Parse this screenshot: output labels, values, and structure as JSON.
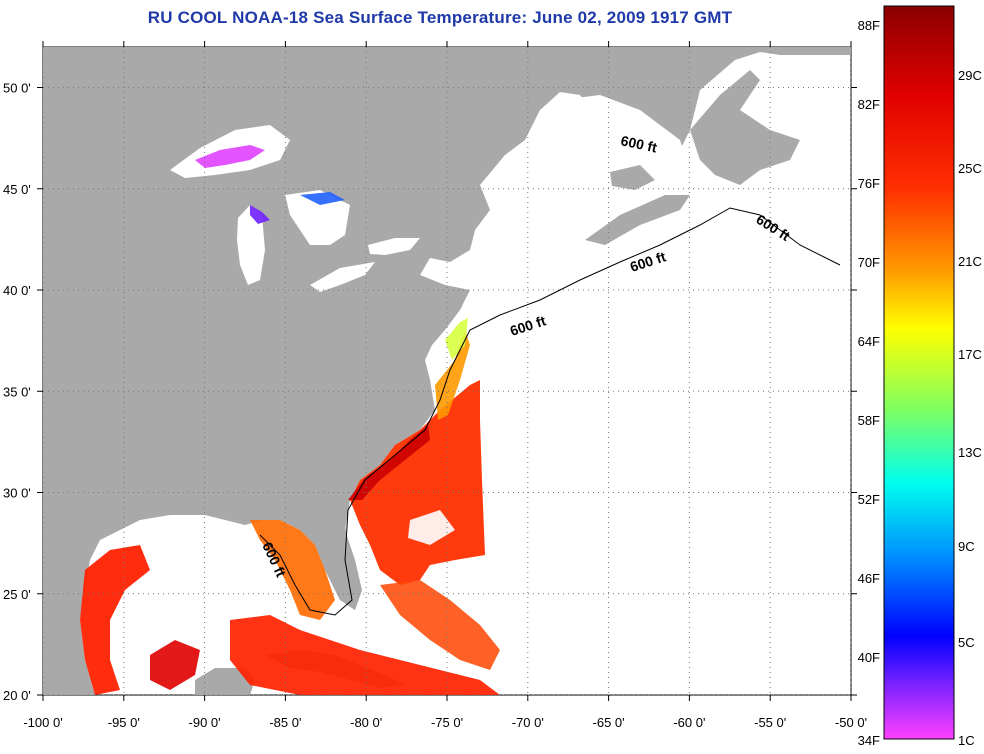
{
  "title": "RU COOL  NOAA-18  Sea Surface Temperature:  June 02, 2009 1917 GMT",
  "map": {
    "lon_range": [
      -100,
      -50
    ],
    "lat_range": [
      20,
      52
    ],
    "lon_ticks": [
      "-100 0'",
      "-95 0'",
      "-90 0'",
      "-85 0'",
      "-80 0'",
      "-75 0'",
      "-70 0'",
      "-65 0'",
      "-60 0'",
      "-55 0'",
      "-50 0'"
    ],
    "lat_ticks": [
      "20 0'",
      "25 0'",
      "30 0'",
      "35 0'",
      "40 0'",
      "45 0'",
      "50 0'"
    ],
    "contour_label": "600 ft",
    "land_color": "#a9a9a9",
    "no_data_color": "#ffffff"
  },
  "colorbar": {
    "fahrenheit_labels": [
      "88F",
      "82F",
      "76F",
      "70F",
      "64F",
      "58F",
      "52F",
      "46F",
      "40F",
      "34F"
    ],
    "celsius_labels": [
      "29C",
      "25C",
      "21C",
      "17C",
      "13C",
      "9C",
      "5C",
      "1C"
    ],
    "colors": [
      "#8b0000",
      "#ff0000",
      "#ff8c00",
      "#ffff00",
      "#80ff80",
      "#00ffff",
      "#0080ff",
      "#0000ff",
      "#8000ff",
      "#ff40ff"
    ]
  }
}
